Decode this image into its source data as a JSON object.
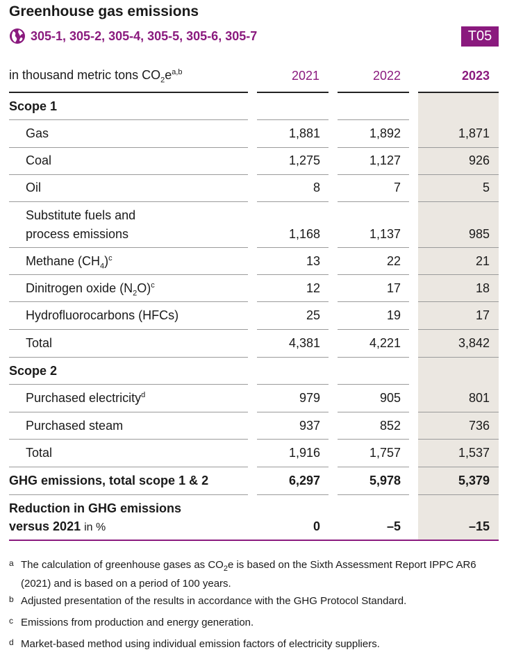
{
  "title": "Greenhouse gas emissions",
  "gri_codes": "305-1, 305-2, 305-4, 305-5, 305-6, 305-7",
  "table_id": "T05",
  "colors": {
    "accent": "#8a1a7e",
    "highlight_column": "#ebe7e1"
  },
  "header": {
    "unit_label": "in thousand metric tons CO",
    "unit_sub": "2",
    "unit_tail": "e",
    "unit_sup": "a,b",
    "years": [
      "2021",
      "2022",
      "2023"
    ]
  },
  "scope1": {
    "heading": "Scope 1",
    "gas": {
      "label": "Gas",
      "values": [
        "1,881",
        "1,892",
        "1,871"
      ]
    },
    "coal": {
      "label": "Coal",
      "values": [
        "1,275",
        "1,127",
        "926"
      ]
    },
    "oil": {
      "label": "Oil",
      "values": [
        "8",
        "7",
        "5"
      ]
    },
    "substitute": {
      "label_line1": "Substitute fuels and",
      "label_line2": "process emissions",
      "values": [
        "1,168",
        "1,137",
        "985"
      ]
    },
    "methane": {
      "label": "Methane (CH",
      "sub": "4",
      "tail": ")",
      "sup": "c",
      "values": [
        "13",
        "22",
        "21"
      ]
    },
    "dinitrogen": {
      "label": "Dinitrogen oxide (N",
      "sub": "2",
      "tail": "O)",
      "sup": "c",
      "values": [
        "12",
        "17",
        "18"
      ]
    },
    "hfc": {
      "label": "Hydrofluorocarbons (HFCs)",
      "values": [
        "25",
        "19",
        "17"
      ]
    },
    "total": {
      "label": "Total",
      "values": [
        "4,381",
        "4,221",
        "3,842"
      ]
    }
  },
  "scope2": {
    "heading": "Scope 2",
    "electricity": {
      "label": "Purchased electricity",
      "sup": "d",
      "values": [
        "979",
        "905",
        "801"
      ]
    },
    "steam": {
      "label": "Purchased steam",
      "values": [
        "937",
        "852",
        "736"
      ]
    },
    "total": {
      "label": "Total",
      "values": [
        "1,916",
        "1,757",
        "1,537"
      ]
    }
  },
  "ghg_total": {
    "label": "GHG emissions, total scope 1 & 2",
    "values": [
      "6,297",
      "5,978",
      "5,379"
    ]
  },
  "reduction": {
    "label_line1": "Reduction in GHG emissions",
    "label_line2": "versus 2021",
    "unit": "in %",
    "values": [
      "0",
      "–5",
      "–15"
    ]
  },
  "footnotes": [
    {
      "mark": "a",
      "text_a": "The calculation of greenhouse gases as CO",
      "sub": "2",
      "text_b": "e is based on the Sixth Assessment Report IPPC AR6 (2021) and is based on a period of 100 years."
    },
    {
      "mark": "b",
      "text": "Adjusted presentation of the results in accordance with the GHG Protocol Standard."
    },
    {
      "mark": "c",
      "text": "Emissions from production and energy generation."
    },
    {
      "mark": "d",
      "text": "Market-based method using individual emission factors of electricity suppliers."
    }
  ]
}
